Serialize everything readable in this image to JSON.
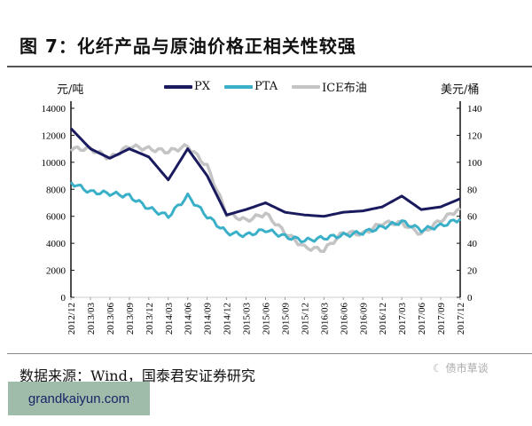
{
  "title": "图 7：化纤产品与原油价格正相关性较强",
  "axes": {
    "left_unit": "元/吨",
    "right_unit": "美元/桶",
    "left_ticks": [
      "14000",
      "12000",
      "10000",
      "8000",
      "6000",
      "4000",
      "2000",
      "0"
    ],
    "right_ticks": [
      "140",
      "120",
      "100",
      "80",
      "60",
      "40",
      "20",
      "0"
    ]
  },
  "legend": [
    {
      "label": "PX",
      "color": "#1a1a5e"
    },
    {
      "label": "PTA",
      "color": "#3ab0c8"
    },
    {
      "label": "ICE布油",
      "color": "#c4c4c4"
    }
  ],
  "source": "数据来源：Wind，国泰君安证券研究",
  "watermark": "债市草谈",
  "site_badge": "grandkaiyun.com",
  "chart_data": {
    "type": "line",
    "title": "化纤产品与原油价格正相关性较强",
    "x": [
      "2012/12",
      "2013/03",
      "2013/06",
      "2013/09",
      "2013/12",
      "2014/03",
      "2014/06",
      "2014/09",
      "2014/12",
      "2015/03",
      "2015/06",
      "2015/09",
      "2015/12",
      "2016/03",
      "2016/06",
      "2016/09",
      "2016/12",
      "2017/03",
      "2017/06",
      "2017/09",
      "2017/12"
    ],
    "series": [
      {
        "name": "PX",
        "axis": "left",
        "unit": "元/吨",
        "values": [
          12500,
          11000,
          10300,
          11000,
          10400,
          8700,
          11000,
          9000,
          6100,
          6500,
          7000,
          6300,
          6100,
          6000,
          6300,
          6400,
          6700,
          7500,
          6500,
          6700,
          7300
        ]
      },
      {
        "name": "PTA",
        "axis": "left",
        "unit": "元/吨",
        "values": [
          8500,
          7800,
          7700,
          7500,
          6600,
          6000,
          7500,
          6000,
          4800,
          4600,
          5000,
          4500,
          4200,
          4400,
          4600,
          4800,
          5200,
          5600,
          5000,
          5300,
          5800
        ]
      },
      {
        "name": "ICE布油",
        "axis": "right",
        "unit": "美元/桶",
        "values": [
          110,
          110,
          103,
          112,
          110,
          108,
          112,
          97,
          62,
          57,
          62,
          48,
          37,
          35,
          48,
          47,
          55,
          55,
          47,
          57,
          66
        ]
      }
    ],
    "xlabel": "",
    "ylabel_left": "元/吨",
    "ylabel_right": "美元/桶",
    "ylim_left": [
      0,
      14000
    ],
    "ylim_right": [
      0,
      140
    ],
    "grid": false,
    "legend_position": "top"
  }
}
